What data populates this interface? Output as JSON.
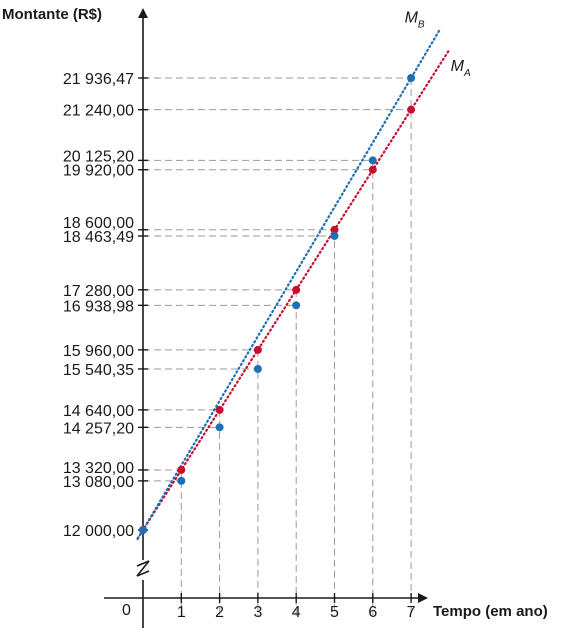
{
  "chart_data": {
    "type": "line",
    "ylabel": "Montante (R$)",
    "xlabel": "Tempo (em ano)",
    "origin_label": "0",
    "x": [
      0,
      1,
      2,
      3,
      4,
      5,
      6,
      7
    ],
    "xlim": [
      0,
      7
    ],
    "ylim": [
      12000,
      21936.47
    ],
    "y_axis_break": true,
    "grid": "dashed guide lines from points to axes",
    "series": [
      {
        "name": "M",
        "subscript": "A",
        "color": "#c8102e",
        "values": [
          12000.0,
          13320.0,
          14640.0,
          15960.0,
          17280.0,
          18600.0,
          19920.0,
          21240.0
        ]
      },
      {
        "name": "M",
        "subscript": "B",
        "color": "#1f6fb5",
        "values": [
          12000.0,
          13080.0,
          14257.2,
          15540.35,
          16938.98,
          18463.49,
          20125.2,
          21936.47
        ]
      }
    ],
    "y_tick_labels": [
      {
        "value": 12000.0,
        "label": "12 000,00"
      },
      {
        "value": 13080.0,
        "label": "13 080,00"
      },
      {
        "value": 13320.0,
        "label": "13 320,00"
      },
      {
        "value": 14257.2,
        "label": "14 257,20"
      },
      {
        "value": 14640.0,
        "label": "14 640,00"
      },
      {
        "value": 15540.35,
        "label": "15 540,35"
      },
      {
        "value": 15960.0,
        "label": "15 960,00"
      },
      {
        "value": 16938.98,
        "label": "16 938,98"
      },
      {
        "value": 17280.0,
        "label": "17 280,00"
      },
      {
        "value": 18463.49,
        "label": "18 463,49"
      },
      {
        "value": 18600.0,
        "label": "18 600,00"
      },
      {
        "value": 19920.0,
        "label": "19 920,00"
      },
      {
        "value": 20125.2,
        "label": "20 125,20"
      },
      {
        "value": 21240.0,
        "label": "21 240,00"
      },
      {
        "value": 21936.47,
        "label": "21 936,47"
      }
    ],
    "x_tick_labels": [
      "1",
      "2",
      "3",
      "4",
      "5",
      "6",
      "7"
    ],
    "colors": {
      "axis": "#1a1a1a",
      "guide": "#9a9a9a"
    }
  }
}
